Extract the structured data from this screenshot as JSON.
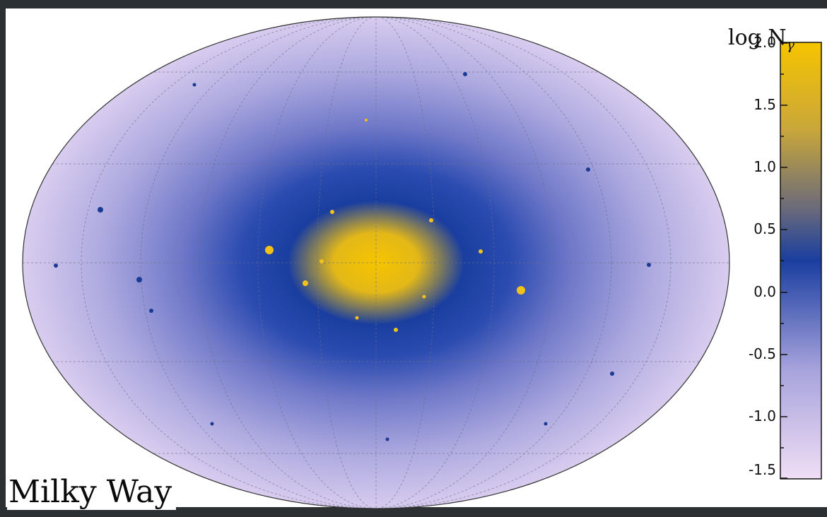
{
  "map_label": "Milky Way",
  "colorbar": {
    "title_text": "log N",
    "title_subscript": "γ",
    "ticks": [
      "2.0",
      "1.5",
      "1.0",
      "0.5",
      "0.0",
      "-0.5",
      "-1.0",
      "-1.5"
    ],
    "range": [
      -1.5,
      2.0
    ],
    "colors": [
      "#f0def5",
      "#7a7fc8",
      "#1a3ea0",
      "#6a6a7a",
      "#c9a73a",
      "#f6c400"
    ]
  },
  "map": {
    "projection": "mollweide",
    "background_color": "#cbc2ea",
    "center_color": "#f6c400"
  }
}
